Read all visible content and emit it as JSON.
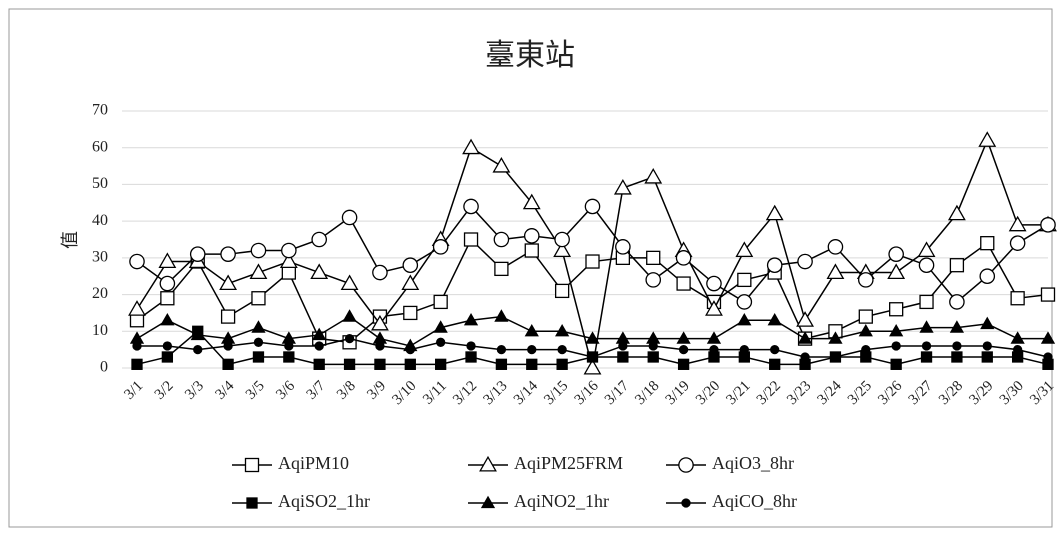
{
  "chart_data": {
    "type": "line",
    "title": "臺東站",
    "y_label": "值",
    "categories": [
      "3/1",
      "3/2",
      "3/3",
      "3/4",
      "3/5",
      "3/6",
      "3/7",
      "3/8",
      "3/9",
      "3/10",
      "3/11",
      "3/12",
      "3/13",
      "3/14",
      "3/15",
      "3/16",
      "3/17",
      "3/18",
      "3/19",
      "3/20",
      "3/21",
      "3/22",
      "3/23",
      "3/24",
      "3/25",
      "3/26",
      "3/27",
      "3/28",
      "3/29",
      "3/30",
      "3/31"
    ],
    "ylim": [
      0,
      70
    ],
    "yticks": [
      0,
      10,
      20,
      30,
      40,
      50,
      60,
      70
    ],
    "grid": true,
    "series": [
      {
        "name": "AqiPM10",
        "color": "#000000",
        "marker": "square-open",
        "values": [
          13,
          19,
          29,
          14,
          19,
          26,
          8,
          7,
          14,
          15,
          18,
          35,
          27,
          32,
          21,
          29,
          30,
          30,
          23,
          18,
          24,
          26,
          8,
          10,
          14,
          16,
          18,
          28,
          34,
          19,
          20
        ]
      },
      {
        "name": "AqiPM25FRM",
        "color": "#000000",
        "marker": "triangle-open",
        "values": [
          16,
          29,
          29,
          23,
          26,
          29,
          26,
          23,
          12,
          23,
          35,
          60,
          55,
          45,
          32,
          0,
          49,
          52,
          32,
          16,
          32,
          42,
          13,
          26,
          26,
          26,
          32,
          42,
          62,
          39,
          39
        ]
      },
      {
        "name": "AqiO3_8hr",
        "color": "#000000",
        "marker": "circle-open",
        "values": [
          29,
          23,
          31,
          31,
          32,
          32,
          35,
          41,
          26,
          28,
          33,
          44,
          35,
          36,
          35,
          44,
          33,
          24,
          30,
          23,
          18,
          28,
          29,
          33,
          24,
          31,
          28,
          18,
          25,
          34,
          39
        ]
      },
      {
        "name": "AqiSO2_1hr",
        "color": "#000000",
        "marker": "square-filled",
        "values": [
          1,
          3,
          10,
          1,
          3,
          3,
          1,
          1,
          1,
          1,
          1,
          3,
          1,
          1,
          1,
          3,
          3,
          3,
          1,
          3,
          3,
          1,
          1,
          3,
          3,
          1,
          3,
          3,
          3,
          3,
          1
        ]
      },
      {
        "name": "AqiNO2_1hr",
        "color": "#000000",
        "marker": "triangle-filled",
        "values": [
          8,
          13,
          9,
          8,
          11,
          8,
          9,
          14,
          8,
          6,
          11,
          13,
          14,
          10,
          10,
          8,
          8,
          8,
          8,
          8,
          13,
          13,
          8,
          8,
          10,
          10,
          11,
          11,
          12,
          8,
          8
        ]
      },
      {
        "name": "AqiCO_8hr",
        "color": "#000000",
        "marker": "circle-filled",
        "values": [
          6,
          6,
          5,
          6,
          7,
          6,
          6,
          8,
          6,
          5,
          7,
          6,
          5,
          5,
          5,
          3,
          6,
          6,
          5,
          5,
          5,
          5,
          3,
          3,
          5,
          6,
          6,
          6,
          6,
          5,
          3
        ]
      }
    ]
  }
}
